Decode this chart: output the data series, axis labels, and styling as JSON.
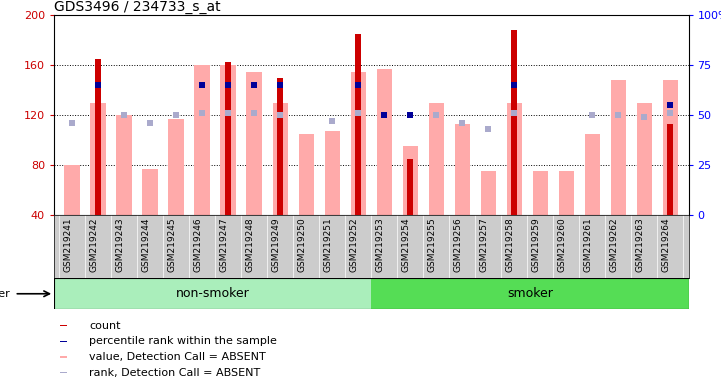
{
  "title": "GDS3496 / 234733_s_at",
  "samples": [
    "GSM219241",
    "GSM219242",
    "GSM219243",
    "GSM219244",
    "GSM219245",
    "GSM219246",
    "GSM219247",
    "GSM219248",
    "GSM219249",
    "GSM219250",
    "GSM219251",
    "GSM219252",
    "GSM219253",
    "GSM219254",
    "GSM219255",
    "GSM219256",
    "GSM219257",
    "GSM219258",
    "GSM219259",
    "GSM219260",
    "GSM219261",
    "GSM219262",
    "GSM219263",
    "GSM219264"
  ],
  "count_values": [
    null,
    165,
    null,
    null,
    null,
    null,
    163,
    null,
    150,
    null,
    null,
    185,
    null,
    85,
    null,
    null,
    null,
    188,
    null,
    null,
    null,
    null,
    null,
    113
  ],
  "rank_values_pct": [
    null,
    65,
    null,
    null,
    null,
    65,
    65,
    65,
    65,
    null,
    null,
    65,
    50,
    50,
    null,
    null,
    null,
    65,
    null,
    null,
    null,
    null,
    null,
    55
  ],
  "absent_value": [
    80,
    130,
    120,
    77,
    117,
    160,
    160,
    155,
    130,
    105,
    107,
    155,
    157,
    95,
    130,
    113,
    75,
    130,
    75,
    75,
    105,
    148,
    130,
    148
  ],
  "absent_rank_pct": [
    46,
    null,
    50,
    46,
    50,
    51,
    51,
    51,
    50,
    null,
    47,
    51,
    null,
    null,
    50,
    46,
    43,
    51,
    null,
    null,
    50,
    50,
    49,
    51
  ],
  "nonsmoker_count": 12,
  "ylim_left": [
    40,
    200
  ],
  "ylim_right": [
    0,
    100
  ],
  "left_ticks": [
    40,
    80,
    120,
    160,
    200
  ],
  "right_ticks": [
    0,
    25,
    50,
    75,
    100
  ],
  "count_color": "#CC0000",
  "rank_color": "#000099",
  "absent_value_color": "#FFAAAA",
  "absent_rank_color": "#AAAACC",
  "nonsmoker_bg": "#AAEEBB",
  "smoker_bg": "#55DD55",
  "xticklabel_bg": "#CCCCCC",
  "legend_fontsize": 8,
  "tick_fontsize": 6.5,
  "title_fontsize": 10
}
